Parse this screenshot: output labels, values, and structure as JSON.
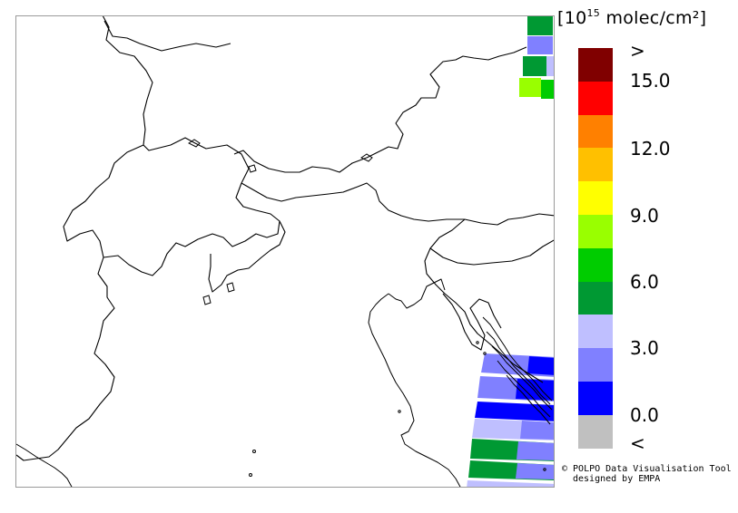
{
  "map": {
    "units_prefix": "[10",
    "units_exponent": "15",
    "units_suffix": " molec/cm²]",
    "region_shown": "Northern Italy / Alps / Adriatic"
  },
  "legend": {
    "steps": [
      {
        "color": "#800000"
      },
      {
        "color": "#ff0000"
      },
      {
        "color": "#ff8000"
      },
      {
        "color": "#ffc000"
      },
      {
        "color": "#ffff00"
      },
      {
        "color": "#99ff00"
      },
      {
        "color": "#00cc00"
      },
      {
        "color": "#009933"
      },
      {
        "color": "#bfbfff"
      },
      {
        "color": "#8080ff"
      },
      {
        "color": "#0000ff"
      },
      {
        "color": "#c0c0c0"
      }
    ],
    "labels": [
      ">",
      "15.0",
      "12.0",
      "9.0",
      "6.0",
      "3.0",
      "0.0",
      "<"
    ]
  },
  "credit": {
    "line1": "© POLPO Data Visualisation Tool",
    "line2": "designed by EMPA"
  }
}
